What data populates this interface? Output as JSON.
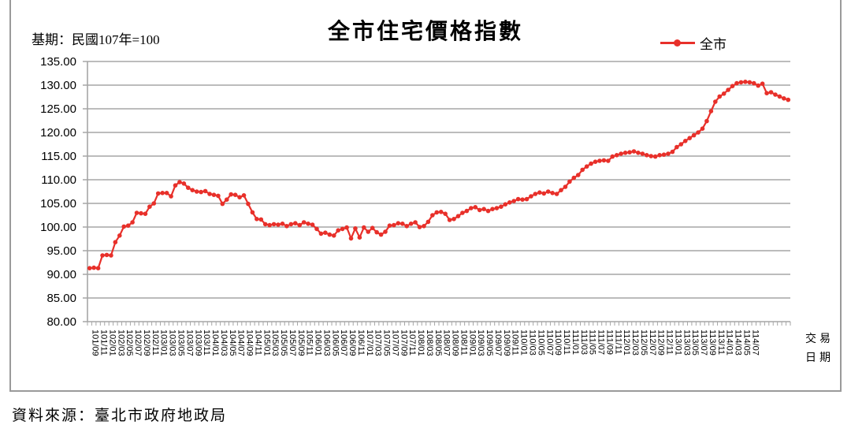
{
  "header": {
    "title": "全市住宅價格指數",
    "base_period": "基期：民國107年=100",
    "legend_label": "全市"
  },
  "footer": {
    "source": "資料來源：臺北市政府地政局"
  },
  "axis": {
    "x_unit_line1": "交易",
    "x_unit_line2": "日期"
  },
  "colors": {
    "series": "#e8302a",
    "grid": "#a6a6a6",
    "frame": "#9a9a9a"
  },
  "chart_data": {
    "type": "line",
    "title": "全市住宅價格指數",
    "subtitle": "基期：民國107年=100",
    "xlabel": "交易日期",
    "ylabel": "",
    "ylim": [
      80,
      135
    ],
    "yticks": [
      "80.00",
      "85.00",
      "90.00",
      "95.00",
      "100.00",
      "105.00",
      "110.00",
      "115.00",
      "120.00",
      "125.00",
      "130.00",
      "135.00"
    ],
    "grid": true,
    "legend_position": "top-right",
    "x_tick_labels": [
      "101/09",
      "101/11",
      "102/01",
      "102/03",
      "102/05",
      "102/07",
      "102/09",
      "102/11",
      "103/01",
      "103/03",
      "103/05",
      "103/07",
      "103/09",
      "103/11",
      "104/01",
      "104/03",
      "104/05",
      "104/07",
      "104/09",
      "104/11",
      "105/01",
      "105/03",
      "105/05",
      "105/07",
      "105/09",
      "105/11",
      "106/01",
      "106/03",
      "106/05",
      "106/07",
      "106/09",
      "106/11",
      "107/01",
      "107/03",
      "107/05",
      "107/07",
      "107/09",
      "107/11",
      "108/01",
      "108/03",
      "108/05",
      "108/07",
      "108/09",
      "108/11",
      "109/01",
      "109/03",
      "109/05",
      "109/07",
      "109/09",
      "109/11",
      "110/01",
      "110/03",
      "110/05",
      "110/07",
      "110/09",
      "110/11",
      "111/01",
      "111/03",
      "111/05",
      "111/07",
      "111/09",
      "111/11",
      "112/01",
      "112/03",
      "112/05",
      "112/07",
      "112/09",
      "112/11",
      "113/01",
      "113/03",
      "113/05",
      "113/07",
      "113/09",
      "113/11",
      "114/01",
      "114/03",
      "114/05",
      "114/07"
    ],
    "series": [
      {
        "name": "全市",
        "color": "#e8302a",
        "start": "101/09",
        "end": "114/07",
        "frequency": "monthly",
        "values": [
          91.3,
          91.4,
          91.3,
          94.0,
          94.1,
          94.0,
          96.8,
          98.2,
          100.1,
          100.3,
          101.0,
          103.0,
          102.9,
          102.8,
          104.3,
          105.0,
          107.1,
          107.2,
          107.2,
          106.5,
          108.8,
          109.5,
          109.2,
          108.3,
          107.8,
          107.5,
          107.4,
          107.6,
          107.0,
          106.8,
          106.6,
          104.9,
          105.8,
          106.9,
          106.8,
          106.3,
          106.7,
          104.9,
          103.1,
          101.7,
          101.6,
          100.6,
          100.4,
          100.6,
          100.5,
          100.7,
          100.2,
          100.6,
          100.8,
          100.4,
          101.0,
          100.7,
          100.5,
          99.6,
          98.6,
          98.8,
          98.4,
          98.2,
          99.3,
          99.6,
          99.9,
          97.6,
          99.7,
          97.8,
          99.9,
          99.0,
          99.8,
          98.9,
          98.4,
          99.0,
          100.3,
          100.4,
          100.8,
          100.7,
          100.2,
          100.7,
          101.0,
          100.0,
          100.2,
          101.1,
          102.5,
          103.1,
          103.2,
          102.8,
          101.5,
          101.7,
          102.3,
          103.0,
          103.4,
          104.0,
          104.2,
          103.6,
          103.8,
          103.4,
          103.8,
          104.0,
          104.3,
          104.8,
          105.2,
          105.5,
          105.9,
          105.8,
          105.9,
          106.5,
          107.0,
          107.3,
          107.1,
          107.5,
          107.2,
          107.0,
          107.8,
          108.5,
          109.6,
          110.4,
          111.0,
          112.1,
          112.8,
          113.4,
          113.8,
          114.0,
          114.1,
          114.0,
          114.9,
          115.2,
          115.5,
          115.7,
          115.8,
          116.0,
          115.7,
          115.5,
          115.2,
          115.0,
          114.9,
          115.2,
          115.3,
          115.5,
          115.9,
          116.9,
          117.5,
          118.2,
          118.8,
          119.4,
          120.0,
          120.8,
          122.4,
          124.5,
          126.5,
          127.6,
          128.2,
          129.0,
          129.8,
          130.4,
          130.6,
          130.7,
          130.6,
          130.4,
          129.9,
          130.3,
          128.3,
          128.5,
          128.0,
          127.6,
          127.2,
          126.9
        ]
      }
    ]
  }
}
